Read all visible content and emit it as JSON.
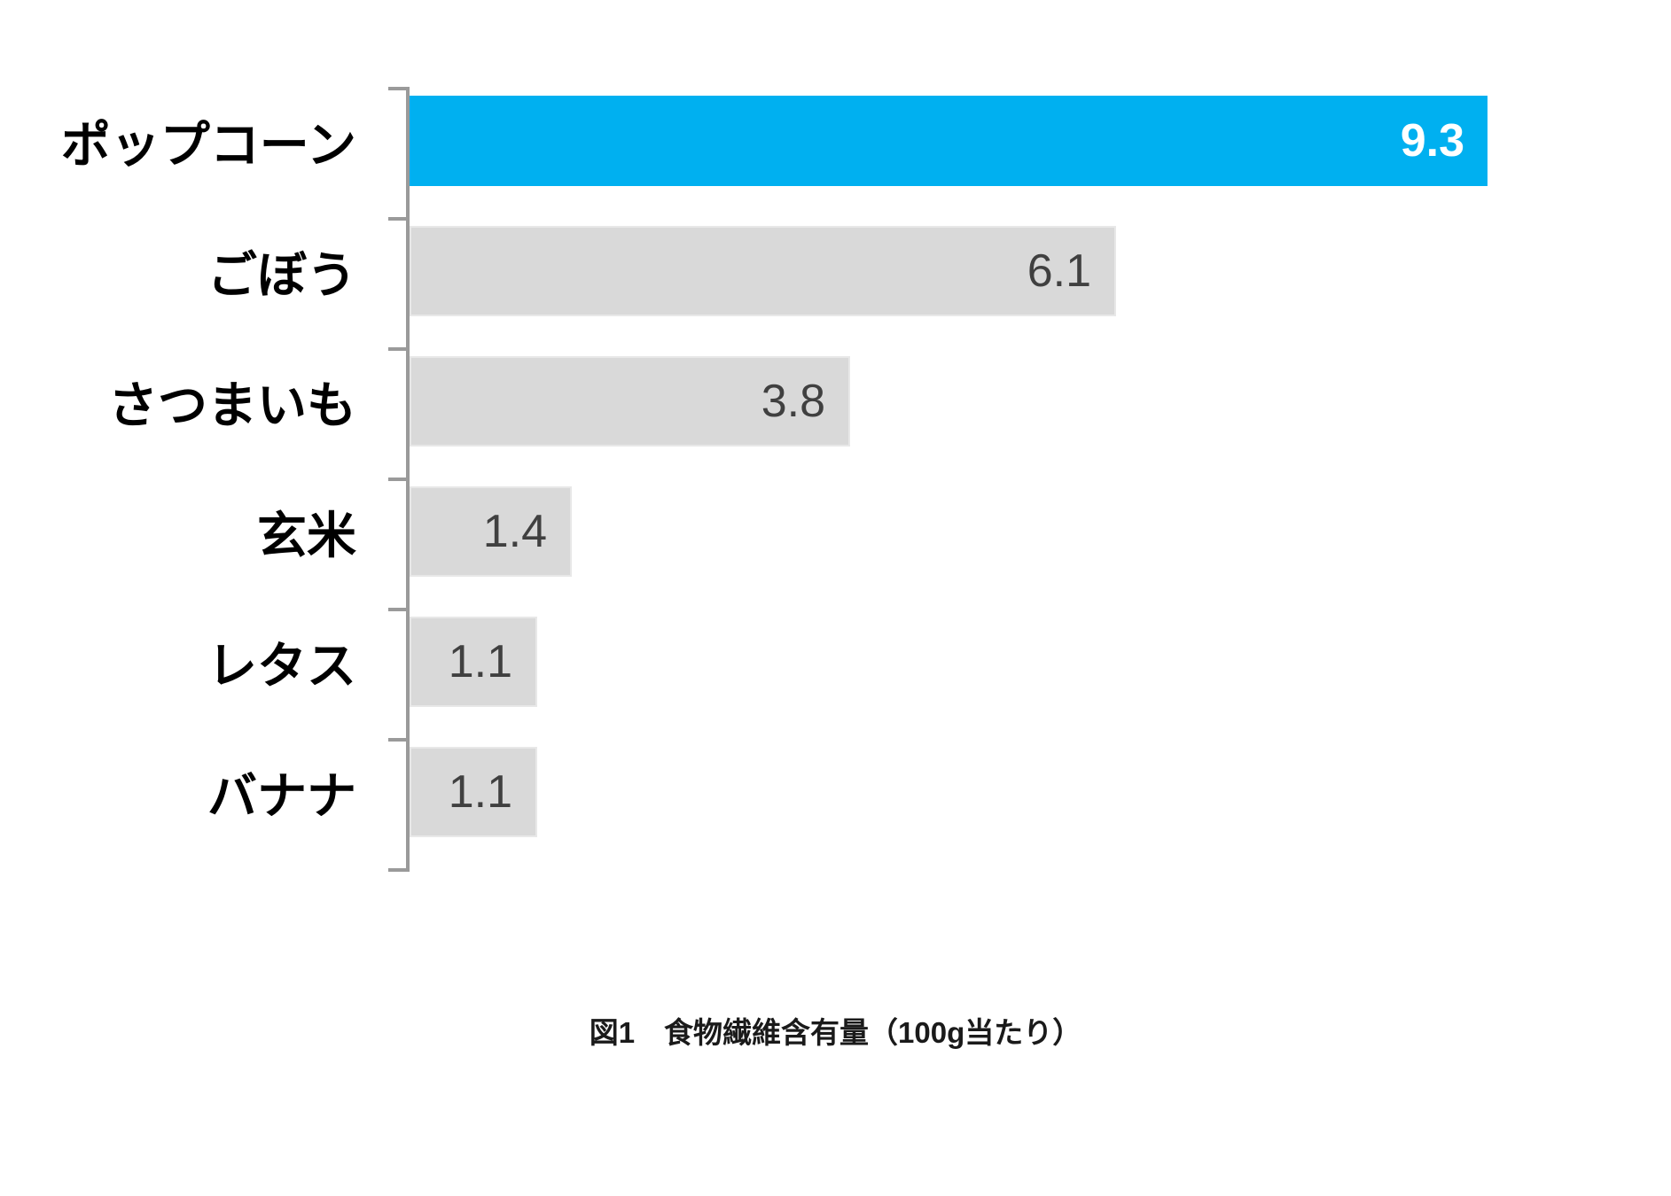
{
  "chart_data": {
    "type": "bar",
    "orientation": "horizontal",
    "title": "図1　食物繊維含有量（100g当たり）",
    "categories": [
      "ポップコーン",
      "ごぼう",
      "さつまいも",
      "玄米",
      "レタス",
      "バナナ"
    ],
    "values": [
      9.3,
      6.1,
      3.8,
      1.4,
      1.1,
      1.1
    ],
    "value_labels": [
      "9.3",
      "6.1",
      "3.8",
      "1.4",
      "1.1",
      "1.1"
    ],
    "xlim": [
      0,
      9.3
    ],
    "grid": false,
    "legend": "none",
    "value_label_position": "inside-end",
    "highlight_index": 0,
    "colors": {
      "highlight_bar": "#00B0F0",
      "default_bar": "#D9D9D9",
      "bar_border": "#E8E8E8",
      "axis": "#9A9A9A",
      "highlight_value_text": "#FFFFFF",
      "value_text": "#404040",
      "label_text": "#000000",
      "caption_text": "#1A1A1A"
    }
  }
}
